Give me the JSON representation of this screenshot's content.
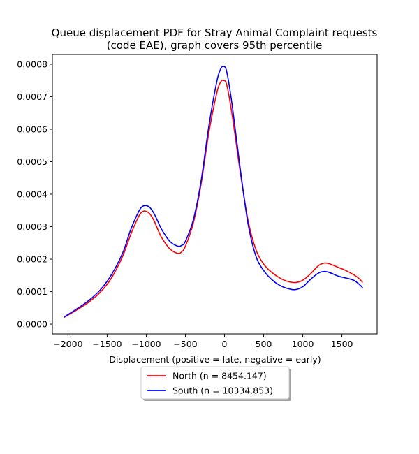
{
  "chart_data": {
    "type": "line",
    "title": [
      "Queue displacement PDF for Stray Animal Complaint  requests",
      "(code EAE), graph covers 95th percentile"
    ],
    "xlabel": "Displacement (positive = late, negative = early)",
    "ylabel": "",
    "xlim": [
      -2200,
      1950
    ],
    "ylim": [
      -3e-05,
      0.00083
    ],
    "xticks": [
      -2000,
      -1500,
      -1000,
      -500,
      0,
      500,
      1000,
      1500
    ],
    "xtick_labels": [
      "−2000",
      "−1500",
      "−1000",
      "−500",
      "0",
      "500",
      "1000",
      "1500"
    ],
    "yticks": [
      0,
      0.0001,
      0.0002,
      0.0003,
      0.0004,
      0.0005,
      0.0006,
      0.0007,
      0.0008
    ],
    "ytick_labels": [
      "0.0000",
      "0.0001",
      "0.0002",
      "0.0003",
      "0.0004",
      "0.0005",
      "0.0006",
      "0.0007",
      "0.0008"
    ],
    "grid": false,
    "legend": {
      "placement": "below-center",
      "shadow": true
    },
    "series": [
      {
        "name": "North (n = 8454.147)",
        "color": "#ff0000",
        "points": [
          [
            -2050,
            2.1e-05
          ],
          [
            -1900,
            4.2e-05
          ],
          [
            -1750,
            6.5e-05
          ],
          [
            -1600,
            9.5e-05
          ],
          [
            -1450,
            0.00014
          ],
          [
            -1300,
            0.00021
          ],
          [
            -1200,
            0.000275
          ],
          [
            -1100,
            0.00033
          ],
          [
            -1050,
            0.000346
          ],
          [
            -1000,
            0.000347
          ],
          [
            -950,
            0.000338
          ],
          [
            -900,
            0.000318
          ],
          [
            -850,
            0.00029
          ],
          [
            -800,
            0.000265
          ],
          [
            -700,
            0.000232
          ],
          [
            -600,
            0.000218
          ],
          [
            -550,
            0.000222
          ],
          [
            -500,
            0.00024
          ],
          [
            -400,
            0.00031
          ],
          [
            -300,
            0.00043
          ],
          [
            -200,
            0.00059
          ],
          [
            -100,
            0.00071
          ],
          [
            -50,
            0.000745
          ],
          [
            -10,
            0.00075
          ],
          [
            30,
            0.000735
          ],
          [
            100,
            0.00064
          ],
          [
            200,
            0.00047
          ],
          [
            300,
            0.00032
          ],
          [
            400,
            0.00023
          ],
          [
            500,
            0.000185
          ],
          [
            600,
            0.00016
          ],
          [
            700,
            0.000143
          ],
          [
            800,
            0.000132
          ],
          [
            900,
            0.000128
          ],
          [
            1000,
            0.000135
          ],
          [
            1100,
            0.000155
          ],
          [
            1200,
            0.00018
          ],
          [
            1280,
            0.000188
          ],
          [
            1350,
            0.000185
          ],
          [
            1450,
            0.000175
          ],
          [
            1550,
            0.000165
          ],
          [
            1650,
            0.000152
          ],
          [
            1720,
            0.00014
          ],
          [
            1765,
            0.000128
          ]
        ]
      },
      {
        "name": "South (n = 10334.853)",
        "color": "#0000ff",
        "points": [
          [
            -2050,
            2.2e-05
          ],
          [
            -1900,
            4.5e-05
          ],
          [
            -1750,
            7e-05
          ],
          [
            -1600,
            0.000102
          ],
          [
            -1450,
            0.00015
          ],
          [
            -1300,
            0.00022
          ],
          [
            -1200,
            0.00029
          ],
          [
            -1100,
            0.000345
          ],
          [
            -1050,
            0.000362
          ],
          [
            -1000,
            0.000365
          ],
          [
            -950,
            0.000358
          ],
          [
            -900,
            0.00034
          ],
          [
            -850,
            0.000315
          ],
          [
            -800,
            0.00029
          ],
          [
            -700,
            0.000255
          ],
          [
            -600,
            0.00024
          ],
          [
            -550,
            0.000242
          ],
          [
            -500,
            0.000255
          ],
          [
            -400,
            0.00032
          ],
          [
            -300,
            0.00044
          ],
          [
            -200,
            0.00061
          ],
          [
            -100,
            0.000745
          ],
          [
            -50,
            0.000785
          ],
          [
            -10,
            0.000793
          ],
          [
            30,
            0.000775
          ],
          [
            100,
            0.00067
          ],
          [
            200,
            0.00048
          ],
          [
            300,
            0.00031
          ],
          [
            400,
            0.00021
          ],
          [
            500,
            0.000165
          ],
          [
            600,
            0.000138
          ],
          [
            700,
            0.00012
          ],
          [
            800,
            0.00011
          ],
          [
            900,
            0.000106
          ],
          [
            1000,
            0.000115
          ],
          [
            1100,
            0.000138
          ],
          [
            1200,
            0.000157
          ],
          [
            1280,
            0.000162
          ],
          [
            1350,
            0.000158
          ],
          [
            1450,
            0.000148
          ],
          [
            1550,
            0.000142
          ],
          [
            1650,
            0.000135
          ],
          [
            1720,
            0.000123
          ],
          [
            1765,
            0.000112
          ]
        ]
      }
    ]
  }
}
